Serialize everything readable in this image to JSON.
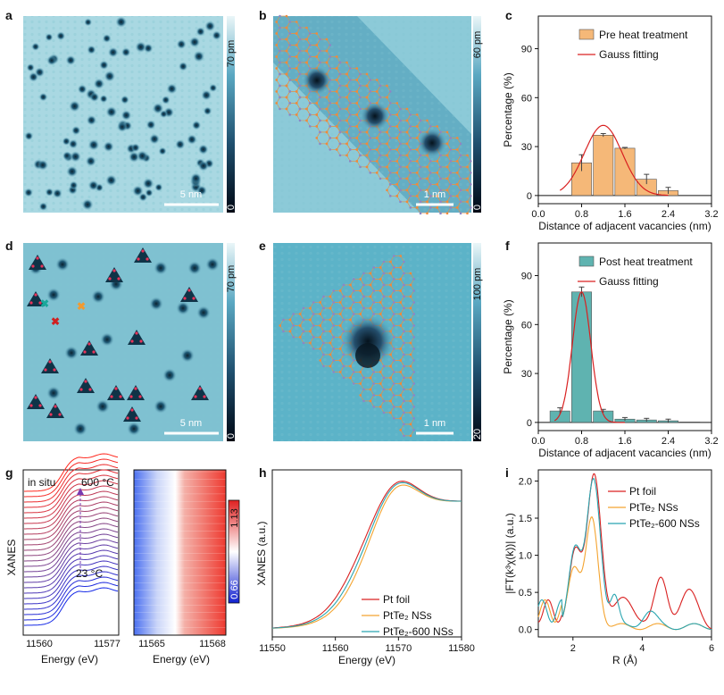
{
  "panels": {
    "a": {
      "label": "a",
      "scalebar": "5 nm",
      "cb_top": "70 pm",
      "cb_bottom": "0"
    },
    "b": {
      "label": "b",
      "scalebar": "1 nm",
      "cb_top": "60 pm",
      "cb_bottom": "0"
    },
    "d": {
      "label": "d",
      "scalebar": "5 nm",
      "cb_top": "70 pm",
      "cb_bottom": "0"
    },
    "e": {
      "label": "e",
      "scalebar": "1 nm",
      "cb_top": "100 pm",
      "cb_bottom": "20"
    },
    "g": {
      "label": "g",
      "insitu": "in situ",
      "t_high": "600 °C",
      "t_low": "23 °C",
      "ylabel": "XANES",
      "xlabel": "Energy (eV)",
      "xticks1": [
        "11560",
        "11577"
      ],
      "xticks2": [
        "11565",
        "11568"
      ],
      "cb_top": "1.13",
      "cb_bottom": "0.66"
    }
  },
  "colors": {
    "orange": "#f5b878",
    "teal": "#5fb3b0",
    "red": "#d92020",
    "orange_line": "#f4a430",
    "cyan_line": "#29a5b0"
  },
  "chart_data": [
    {
      "panel": "c",
      "type": "bar",
      "xlabel": "Distance of adjacent vacancies (nm)",
      "ylabel": "Percentage (%)",
      "xlim": [
        0,
        3.2
      ],
      "ylim": [
        -5,
        110
      ],
      "xticks": [
        "0.0",
        "0.8",
        "1.6",
        "2.4",
        "3.2"
      ],
      "yticks": [
        "0",
        "30",
        "60",
        "90"
      ],
      "series": [
        {
          "name": "Pre heat treatment",
          "x": [
            0.8,
            1.2,
            1.6,
            2.0,
            2.4
          ],
          "values": [
            20,
            37,
            29,
            10,
            3
          ],
          "err": [
            5,
            1,
            0.5,
            3,
            2
          ]
        }
      ],
      "fit": {
        "name": "Gauss fitting",
        "center": 1.2,
        "amp": 43,
        "sigma": 0.35,
        "range": [
          0.4,
          2.4
        ]
      }
    },
    {
      "panel": "f",
      "type": "bar",
      "xlabel": "Distance of adjacent vacancies (nm)",
      "ylabel": "Percentage (%)",
      "xlim": [
        0,
        3.2
      ],
      "ylim": [
        -5,
        110
      ],
      "xticks": [
        "0.0",
        "0.8",
        "1.6",
        "2.4",
        "3.2"
      ],
      "yticks": [
        "0",
        "30",
        "60",
        "90"
      ],
      "series": [
        {
          "name": "Post heat treatment",
          "x": [
            0.4,
            0.8,
            1.2,
            1.6,
            2.0,
            2.4,
            2.8
          ],
          "values": [
            7,
            80,
            7,
            2,
            1.5,
            1,
            0.3
          ],
          "err": [
            2,
            3,
            1,
            1,
            1,
            1,
            0
          ]
        }
      ],
      "fit": {
        "name": "Gauss fitting",
        "center": 0.8,
        "amp": 80,
        "sigma": 0.17,
        "range": [
          0.3,
          1.6
        ]
      }
    },
    {
      "panel": "h",
      "type": "line",
      "xlabel": "Energy (eV)",
      "ylabel": "XANES (a.u.)",
      "xlim": [
        11550,
        11580
      ],
      "xticks": [
        "11550",
        "11560",
        "11570",
        "11580"
      ],
      "series": [
        {
          "name": "Pt foil"
        },
        {
          "name": "PtTe₂ NSs"
        },
        {
          "name": "PtTe₂-600 NSs"
        }
      ]
    },
    {
      "panel": "i",
      "type": "line",
      "xlabel": "R (Å)",
      "ylabel": "|FT(k³χ(k))| (a.u.)",
      "xlim": [
        1,
        6
      ],
      "ylim": [
        -0.1,
        2.15
      ],
      "xticks": [
        "2",
        "4",
        "6"
      ],
      "yticks": [
        "0.0",
        "0.5",
        "1.0",
        "1.5",
        "2.0"
      ],
      "series": [
        {
          "name": "Pt foil",
          "peak": 2.0
        },
        {
          "name": "PtTe₂ NSs",
          "peak": 1.45
        },
        {
          "name": "PtTe₂-600 NSs",
          "peak": 1.98
        }
      ]
    }
  ]
}
